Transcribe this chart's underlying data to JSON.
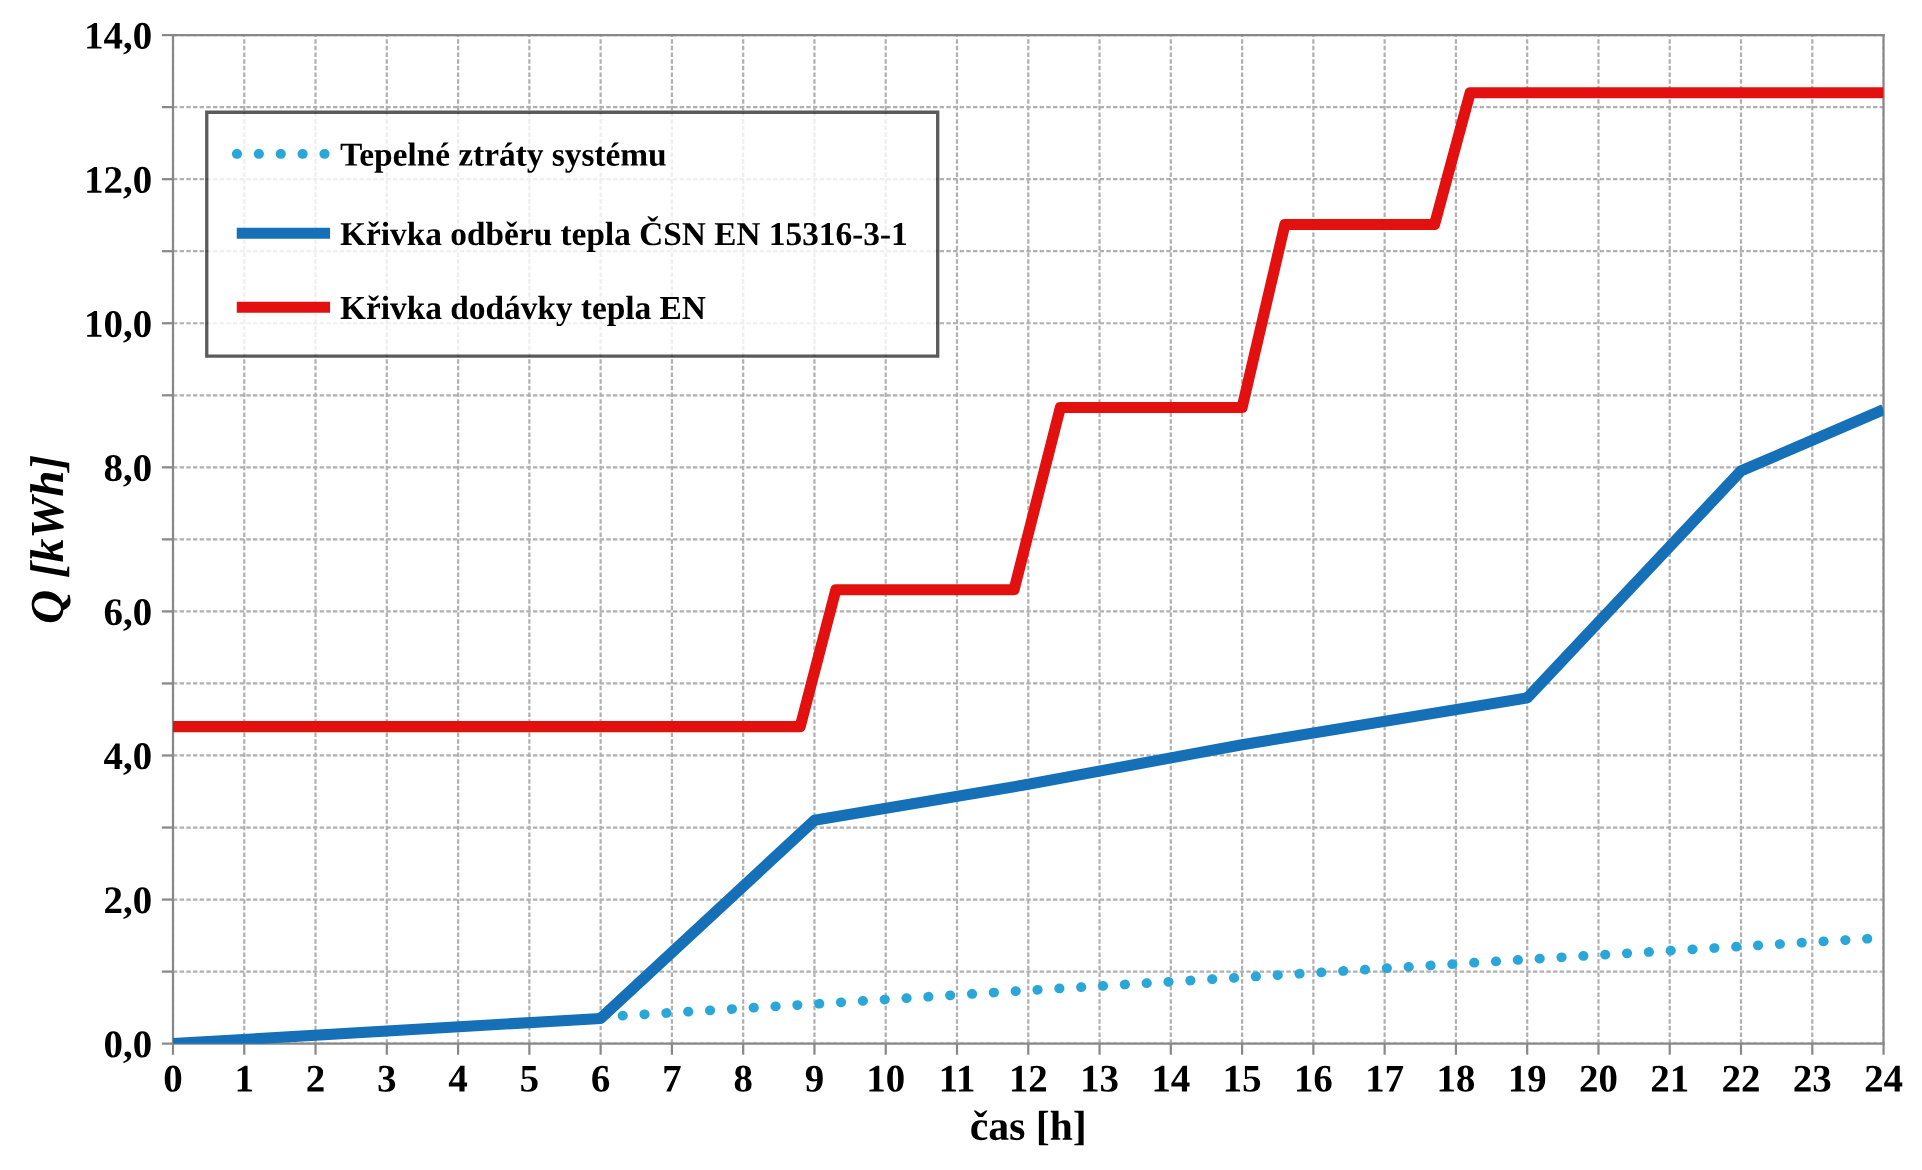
{
  "chart_data": {
    "type": "line",
    "xlabel": "čas [h]",
    "ylabel": "Q [kWh]",
    "xlim": [
      0,
      24
    ],
    "xticks": [
      0,
      1,
      2,
      3,
      4,
      5,
      6,
      7,
      8,
      9,
      10,
      11,
      12,
      13,
      14,
      15,
      16,
      17,
      18,
      19,
      20,
      21,
      22,
      23,
      24
    ],
    "ylim": [
      0,
      14
    ],
    "yticks": [
      {
        "value": 0,
        "label": "0,0"
      },
      {
        "value": 1,
        "label": null
      },
      {
        "value": 2,
        "label": "2,0"
      },
      {
        "value": 3,
        "label": null
      },
      {
        "value": 4,
        "label": "4,0"
      },
      {
        "value": 5,
        "label": null
      },
      {
        "value": 6,
        "label": "6,0"
      },
      {
        "value": 7,
        "label": null
      },
      {
        "value": 8,
        "label": "8,0"
      },
      {
        "value": 9,
        "label": null
      },
      {
        "value": 10,
        "label": "10,0"
      },
      {
        "value": 11,
        "label": null
      },
      {
        "value": 12,
        "label": "12,0"
      },
      {
        "value": 13,
        "label": null
      },
      {
        "value": 14,
        "label": "14,0"
      }
    ],
    "grid": true,
    "legend": "top left",
    "marker": "none",
    "series": [
      {
        "name": "Tepelné ztráty systému",
        "color": "#2aa7d8",
        "line_style": "dotted",
        "x": [
          6,
          9,
          12,
          15,
          19,
          24
        ],
        "values": [
          0.37,
          0.55,
          0.74,
          0.92,
          1.17,
          1.47
        ]
      },
      {
        "name": "Křivka odběru tepla ČSN EN 15316-3-1",
        "color": "#1570b8",
        "line_style": "solid",
        "x": [
          0,
          6,
          9,
          12,
          15,
          19,
          22,
          24
        ],
        "values": [
          0,
          0.35,
          3.1,
          3.6,
          4.15,
          4.8,
          7.95,
          8.8
        ]
      },
      {
        "name": "Křivka dodávky tepla EN",
        "color": "#e31010",
        "line_style": "solid",
        "x": [
          0,
          8.8,
          9.3,
          11.8,
          12.45,
          15.0,
          15.6,
          17.7,
          18.2,
          24
        ],
        "values": [
          4.4,
          4.4,
          6.3,
          6.3,
          8.83,
          8.83,
          11.37,
          11.37,
          13.2,
          13.2
        ]
      }
    ]
  }
}
